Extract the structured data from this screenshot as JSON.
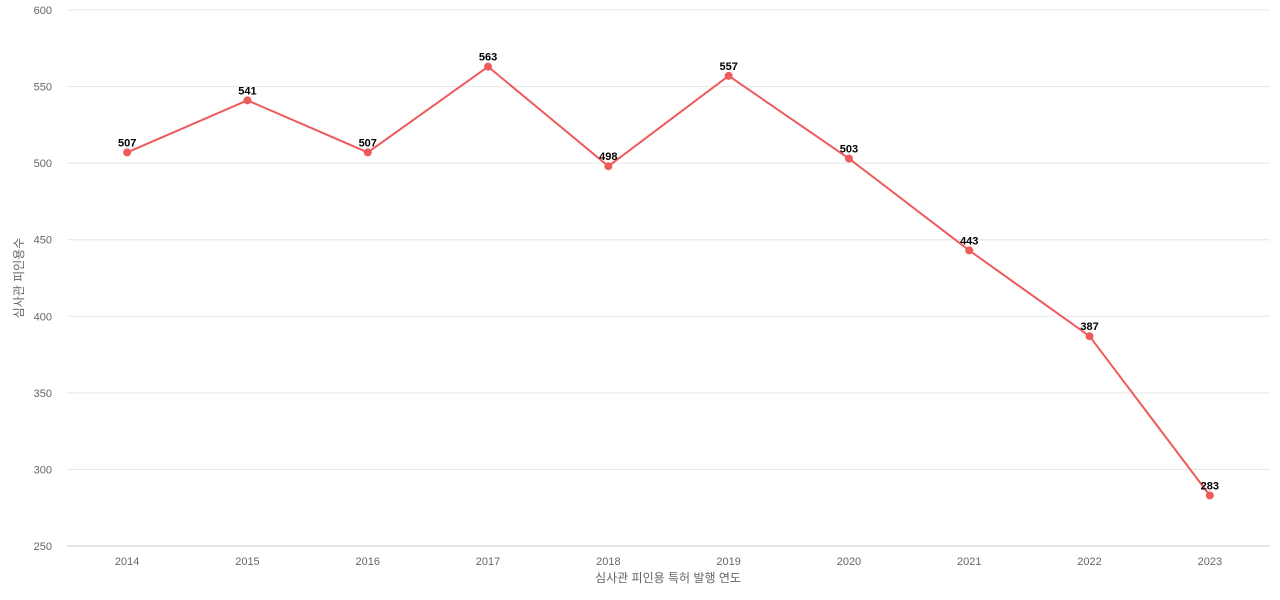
{
  "chart_data": {
    "type": "line",
    "title": "",
    "xlabel": "심사관 피인용 특허 발행 연도",
    "ylabel": "심사관 피인용수",
    "categories": [
      "2014",
      "2015",
      "2016",
      "2017",
      "2018",
      "2019",
      "2020",
      "2021",
      "2022",
      "2023"
    ],
    "series": [
      {
        "values": [
          507,
          541,
          507,
          563,
          498,
          557,
          503,
          443,
          387,
          283
        ],
        "color": "#ef5a5a"
      }
    ],
    "ylim": [
      250,
      600
    ],
    "yticks": [
      250,
      300,
      350,
      400,
      450,
      500,
      550,
      600
    ],
    "grid": true,
    "data_labels": true
  }
}
